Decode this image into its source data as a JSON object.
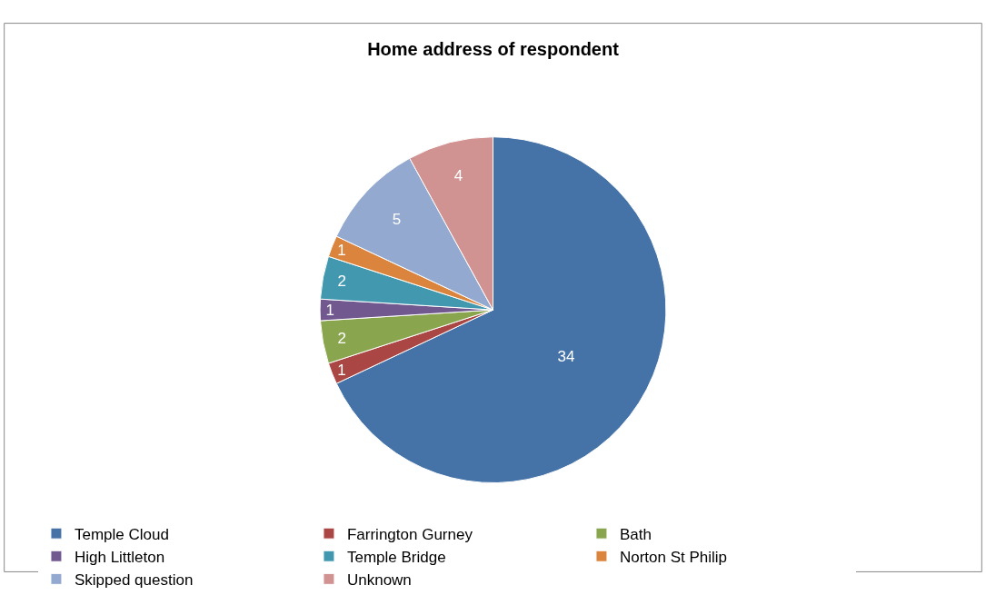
{
  "chart_data": {
    "type": "pie",
    "title": "Home address of respondent",
    "categories": [
      "Temple Cloud",
      "Farrington Gurney",
      "Bath",
      "High Littleton",
      "Temple Bridge",
      "Norton St Philip",
      "Skipped question",
      "Unknown"
    ],
    "values": [
      34,
      1,
      2,
      1,
      2,
      1,
      5,
      4
    ],
    "colors": [
      "#4572a7",
      "#aa4643",
      "#89a54e",
      "#71588f",
      "#4198af",
      "#db843d",
      "#93a9cf",
      "#d19392"
    ],
    "data_labels": true,
    "legend": "bottom"
  }
}
